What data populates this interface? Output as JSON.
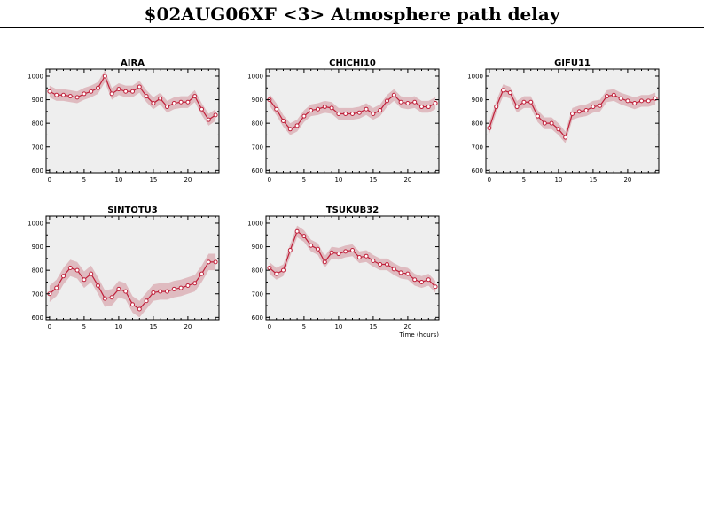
{
  "page": {
    "title": "$02AUG06XF <3>  Atmosphere path delay"
  },
  "theme": {
    "line": "#c0203a",
    "band": "#d9a9b0",
    "panel_bg": "#eeeeee",
    "axis": "#000000"
  },
  "chart_data": [
    {
      "type": "line",
      "title": "AIRA",
      "xlabel": "",
      "xlim": [
        -0.5,
        24.5
      ],
      "ylim": [
        590,
        1030
      ],
      "xticks": [
        0,
        5,
        10,
        15,
        20
      ],
      "yticks": [
        600,
        700,
        800,
        900,
        1000
      ],
      "x": [
        0,
        1,
        2,
        3,
        4,
        5,
        6,
        7,
        8,
        9,
        10,
        11,
        12,
        13,
        14,
        15,
        16,
        17,
        18,
        19,
        20,
        21,
        22,
        23,
        24
      ],
      "y": [
        935,
        920,
        920,
        915,
        910,
        925,
        935,
        950,
        1000,
        925,
        945,
        935,
        935,
        955,
        915,
        885,
        905,
        870,
        885,
        890,
        890,
        915,
        860,
        815,
        835
      ],
      "band": 25
    },
    {
      "type": "line",
      "title": "CHICHI10",
      "xlabel": "",
      "xlim": [
        -0.5,
        24.5
      ],
      "ylim": [
        590,
        1030
      ],
      "xticks": [
        0,
        5,
        10,
        15,
        20
      ],
      "yticks": [
        600,
        700,
        800,
        900,
        1000
      ],
      "x": [
        0,
        1,
        2,
        3,
        4,
        5,
        6,
        7,
        8,
        9,
        10,
        11,
        12,
        13,
        14,
        15,
        16,
        17,
        18,
        19,
        20,
        21,
        22,
        23,
        24
      ],
      "y": [
        900,
        860,
        810,
        775,
        790,
        830,
        855,
        860,
        870,
        865,
        840,
        840,
        840,
        845,
        860,
        840,
        855,
        895,
        920,
        890,
        885,
        890,
        870,
        870,
        885
      ],
      "band": 25
    },
    {
      "type": "line",
      "title": "GIFU11",
      "xlabel": "",
      "xlim": [
        -0.5,
        24.5
      ],
      "ylim": [
        590,
        1030
      ],
      "xticks": [
        0,
        5,
        10,
        15,
        20
      ],
      "yticks": [
        600,
        700,
        800,
        900,
        1000
      ],
      "x": [
        0,
        1,
        2,
        3,
        4,
        5,
        6,
        7,
        8,
        9,
        10,
        11,
        12,
        13,
        14,
        15,
        16,
        17,
        18,
        19,
        20,
        21,
        22,
        23,
        24
      ],
      "y": [
        780,
        870,
        940,
        930,
        870,
        890,
        890,
        830,
        800,
        800,
        775,
        740,
        840,
        850,
        855,
        870,
        875,
        915,
        920,
        905,
        895,
        885,
        895,
        895,
        905
      ],
      "band": 25
    },
    {
      "type": "line",
      "title": "SINTOTU3",
      "xlabel": "",
      "xlim": [
        -0.5,
        24.5
      ],
      "ylim": [
        590,
        1030
      ],
      "xticks": [
        0,
        5,
        10,
        15,
        20
      ],
      "yticks": [
        600,
        700,
        800,
        900,
        1000
      ],
      "x": [
        0,
        1,
        2,
        3,
        4,
        5,
        6,
        7,
        8,
        9,
        10,
        11,
        12,
        13,
        14,
        15,
        16,
        17,
        18,
        19,
        20,
        21,
        22,
        23,
        24
      ],
      "y": [
        700,
        725,
        775,
        810,
        800,
        760,
        785,
        735,
        680,
        685,
        720,
        710,
        655,
        635,
        670,
        705,
        710,
        710,
        720,
        725,
        735,
        745,
        785,
        835,
        835
      ],
      "band": 35
    },
    {
      "type": "line",
      "title": "TSUKUB32",
      "xlabel": "Time (hours)",
      "xlim": [
        -0.5,
        24.5
      ],
      "ylim": [
        590,
        1030
      ],
      "xticks": [
        0,
        5,
        10,
        15,
        20
      ],
      "yticks": [
        600,
        700,
        800,
        900,
        1000
      ],
      "x": [
        0,
        1,
        2,
        3,
        4,
        5,
        6,
        7,
        8,
        9,
        10,
        11,
        12,
        13,
        14,
        15,
        16,
        17,
        18,
        19,
        20,
        21,
        22,
        23,
        24
      ],
      "y": [
        810,
        785,
        800,
        885,
        965,
        945,
        905,
        890,
        835,
        875,
        870,
        880,
        885,
        855,
        860,
        840,
        825,
        825,
        805,
        790,
        785,
        760,
        750,
        760,
        730
      ],
      "band": 25
    }
  ]
}
